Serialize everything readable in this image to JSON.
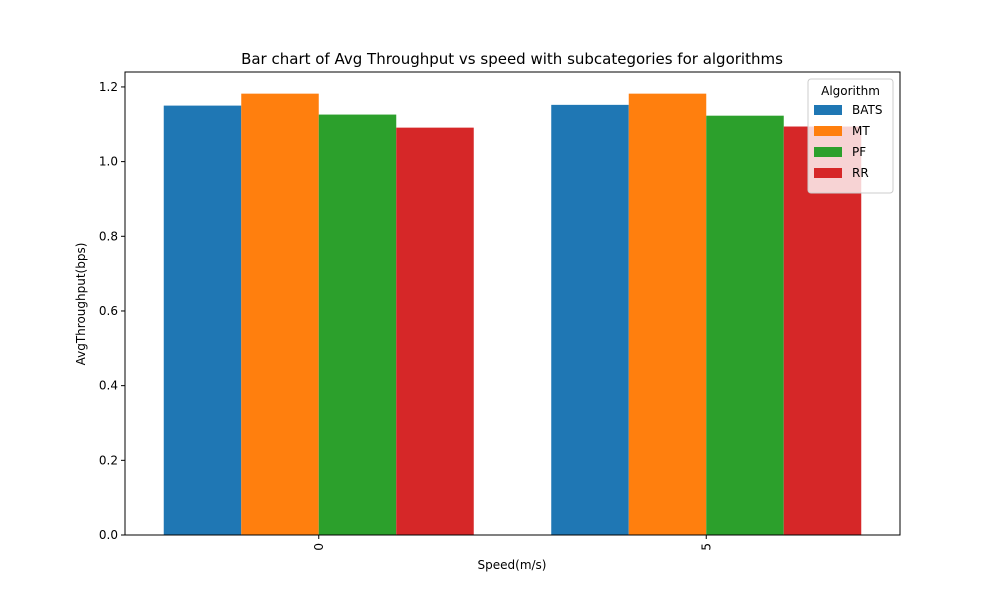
{
  "chart_data": {
    "type": "bar",
    "title": "Bar chart of Avg Throughput vs speed with subcategories for algorithms",
    "xlabel": "Speed(m/s)",
    "ylabel": "AvgThroughput(bps)",
    "categories": [
      "0",
      "5"
    ],
    "ylim": [
      0,
      1.24
    ],
    "yticks": [
      0.0,
      0.2,
      0.4,
      0.6,
      0.8,
      1.0,
      1.2
    ],
    "ytick_labels": [
      "0.0",
      "0.2",
      "0.4",
      "0.6",
      "0.8",
      "1.0",
      "1.2"
    ],
    "grid": false,
    "legend": {
      "title": "Algorithm",
      "placement": "top-right"
    },
    "series": [
      {
        "name": "BATS",
        "color": "#1f77b4",
        "values": [
          1.15,
          1.152
        ]
      },
      {
        "name": "MT",
        "color": "#ff7f0e",
        "values": [
          1.182,
          1.182
        ]
      },
      {
        "name": "PF",
        "color": "#2ca02c",
        "values": [
          1.126,
          1.123
        ]
      },
      {
        "name": "RR",
        "color": "#d62728",
        "values": [
          1.091,
          1.094
        ]
      }
    ]
  }
}
